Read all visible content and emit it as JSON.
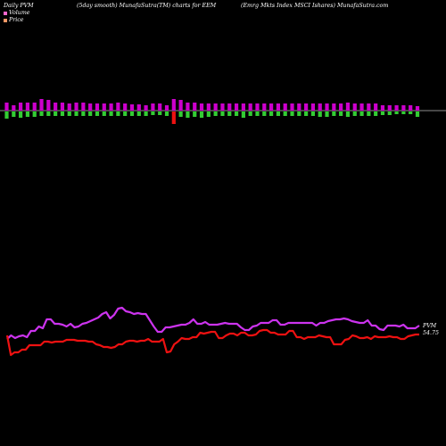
{
  "header": {
    "left": "Daily PVM",
    "middle": "(5day smooth) MunafaSutra(TM) charts for EEM",
    "right": "(Emrg Mkts Index MSCI Ishares) MunafaSutra.com"
  },
  "legend": [
    {
      "label": "Volume",
      "color": "#ff66cc"
    },
    {
      "label": "Price",
      "color": "#ff9966"
    }
  ],
  "colors": {
    "background": "#000000",
    "volume_up": "#cc00cc",
    "volume_down": "#33cc33",
    "volume_spike": "#ee1111",
    "baseline": "#bbbbbb",
    "pvm_line": "#cc33ee",
    "price_line": "#ee1111"
  },
  "chart_data": {
    "type": "line",
    "n_days": 60,
    "volume": {
      "up": [
        9,
        6,
        9,
        9,
        9,
        13,
        12,
        9,
        9,
        8,
        9,
        9,
        8,
        8,
        8,
        8,
        9,
        8,
        7,
        7,
        6,
        8,
        8,
        6,
        13,
        12,
        9,
        9,
        8,
        8,
        8,
        8,
        8,
        8,
        8,
        8,
        8,
        8,
        8,
        8,
        8,
        8,
        8,
        8,
        8,
        8,
        8,
        8,
        8,
        9,
        8,
        8,
        8,
        8,
        6,
        6,
        6,
        6,
        6,
        5
      ],
      "down": [
        8,
        6,
        7,
        6,
        6,
        5,
        5,
        5,
        5,
        5,
        5,
        5,
        5,
        5,
        5,
        5,
        5,
        5,
        5,
        5,
        5,
        4,
        4,
        5,
        14,
        6,
        7,
        6,
        7,
        6,
        5,
        5,
        5,
        5,
        7,
        5,
        5,
        5,
        5,
        5,
        5,
        5,
        5,
        5,
        5,
        6,
        6,
        5,
        5,
        6,
        5,
        5,
        5,
        5,
        4,
        4,
        3,
        3,
        3,
        6
      ]
    },
    "series": [
      {
        "label": "PVM",
        "values": [
          9.2,
          7.9,
          7.6,
          6.0,
          8.7,
          8.7,
          7.4,
          5.4,
          8.0,
          7.9,
          7.3,
          7.1,
          6.6,
          6.4,
          6.6,
          7.1,
          7.0,
          7.3,
          8.0,
          8.2,
          7.5,
          8.1,
          5.2,
          8.9,
          9.8,
          7.6,
          7.9,
          8.2,
          7.6,
          7.9,
          7.6,
          7.1,
          6.6,
          6.4,
          7.1,
          7.9,
          6.3,
          7.6,
          7.9,
          8.0,
          7.3,
          7.3,
          7.6,
          7.3,
          7.1,
          7.5,
          7.9,
          8.0,
          7.4,
          8.0,
          7.6,
          7.9,
          8.2,
          9.4,
          8.3,
          7.6,
          7.6,
          7.9,
          8.0,
          7.1
        ],
        "end_label": "PVM",
        "end_value": "54.75"
      },
      {
        "label": "Price",
        "values": [
          9.6,
          10.3,
          10.0,
          10.2,
          10.3,
          10.0,
          9.8,
          9.6,
          9.4,
          9.3,
          9.0,
          9.0,
          9.1,
          9.3,
          9.3,
          9.3,
          9.5,
          9.5,
          9.6,
          9.8,
          9.9,
          9.8,
          10.6,
          10.7,
          10.1,
          10.1,
          9.8,
          9.5,
          9.3,
          9.5,
          9.6,
          9.8,
          9.6,
          10.0,
          9.3,
          9.6,
          9.3,
          9.6,
          9.6,
          9.4,
          9.6,
          9.2,
          9.3,
          9.4,
          9.6,
          9.7,
          9.7,
          10.0,
          10.0,
          10.0,
          9.2,
          9.1,
          9.1,
          8.9,
          9.0,
          9.2,
          9.1,
          9.4,
          9.4,
          9.4
        ]
      }
    ],
    "pvm_curve": [
      380,
      376,
      379,
      377,
      376,
      378,
      371,
      371,
      366,
      368,
      358,
      358,
      363,
      363,
      364,
      366,
      363,
      367,
      366,
      363,
      362,
      360,
      358,
      356,
      352,
      350,
      357,
      353,
      346,
      345,
      349,
      350,
      352,
      351,
      352,
      352,
      359,
      366,
      372,
      372,
      367,
      367,
      366,
      365,
      364,
      364,
      362,
      358,
      363,
      363,
      361,
      364,
      364,
      364,
      363,
      362,
      363,
      363,
      363,
      367,
      370,
      370,
      366,
      365,
      362,
      362,
      362,
      359,
      359,
      364,
      364,
      362,
      362,
      362,
      362,
      362,
      362,
      362,
      365,
      362,
      362,
      360,
      359,
      358,
      358,
      357,
      358,
      360,
      361,
      362,
      362,
      359,
      365,
      365,
      369,
      370,
      365,
      365,
      365,
      366,
      364,
      368,
      368,
      368,
      365
    ],
    "price_curve": [
      376,
      398,
      395,
      395,
      392,
      392,
      387,
      387,
      387,
      387,
      383,
      383,
      384,
      383,
      383,
      383,
      381,
      381,
      381,
      382,
      382,
      382,
      383,
      383,
      386,
      387,
      389,
      389,
      390,
      389,
      386,
      386,
      383,
      382,
      382,
      383,
      382,
      382,
      380,
      383,
      383,
      383,
      380,
      395,
      394,
      386,
      383,
      379,
      380,
      380,
      378,
      378,
      373,
      374,
      373,
      372,
      372,
      379,
      379,
      376,
      374,
      374,
      376,
      373,
      373,
      376,
      376,
      375,
      371,
      370,
      370,
      373,
      373,
      375,
      375,
      375,
      371,
      371,
      378,
      378,
      380,
      378,
      378,
      378,
      376,
      377,
      378,
      378,
      386,
      386,
      386,
      381,
      380,
      376,
      377,
      379,
      379,
      378,
      380,
      377,
      378,
      378,
      378,
      377,
      378,
      378,
      380,
      380,
      377,
      376,
      375,
      375
    ]
  }
}
